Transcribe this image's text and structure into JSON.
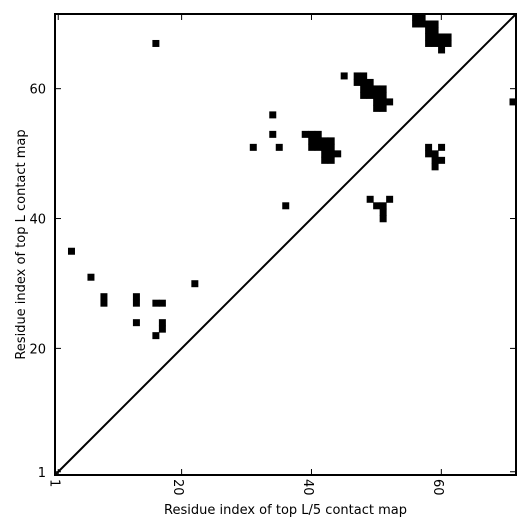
{
  "chart_data": {
    "type": "heatmap",
    "xlabel": "Residue index of top L/5 contact map",
    "ylabel": "Residue index of top L contact map",
    "xlim": [
      0.5,
      71.5
    ],
    "ylim": [
      0.5,
      71.5
    ],
    "xticks": [
      1,
      20,
      40,
      60
    ],
    "yticks": [
      1,
      20,
      40,
      60
    ],
    "grid": false,
    "diagonal": true,
    "color": "#000000",
    "upper_triangle_contacts": [
      [
        16,
        67
      ],
      [
        45,
        62
      ],
      [
        34,
        56
      ],
      [
        34,
        53
      ],
      [
        31,
        51
      ],
      [
        35,
        51
      ],
      [
        36,
        42
      ],
      [
        39,
        53
      ],
      [
        40,
        53
      ],
      [
        41,
        53
      ],
      [
        40,
        52
      ],
      [
        41,
        52
      ],
      [
        42,
        52
      ],
      [
        43,
        52
      ],
      [
        40,
        51
      ],
      [
        41,
        51
      ],
      [
        42,
        51
      ],
      [
        43,
        51
      ],
      [
        42,
        50
      ],
      [
        43,
        50
      ],
      [
        44,
        50
      ],
      [
        42,
        49
      ],
      [
        43,
        49
      ],
      [
        47,
        62
      ],
      [
        48,
        62
      ],
      [
        47,
        61
      ],
      [
        48,
        61
      ],
      [
        49,
        61
      ],
      [
        48,
        60
      ],
      [
        49,
        60
      ],
      [
        50,
        60
      ],
      [
        51,
        60
      ],
      [
        48,
        59
      ],
      [
        49,
        59
      ],
      [
        50,
        59
      ],
      [
        51,
        59
      ],
      [
        50,
        58
      ],
      [
        51,
        58
      ],
      [
        52,
        58
      ],
      [
        50,
        57
      ],
      [
        51,
        57
      ],
      [
        56,
        71
      ],
      [
        57,
        71
      ],
      [
        56,
        70
      ],
      [
        57,
        70
      ],
      [
        58,
        70
      ],
      [
        59,
        70
      ],
      [
        58,
        69
      ],
      [
        59,
        69
      ],
      [
        58,
        68
      ],
      [
        59,
        68
      ],
      [
        60,
        68
      ],
      [
        61,
        68
      ],
      [
        58,
        67
      ],
      [
        59,
        67
      ],
      [
        60,
        67
      ],
      [
        61,
        67
      ],
      [
        60,
        66
      ]
    ],
    "lower_triangle_contacts": [
      [
        3,
        35
      ],
      [
        6,
        31
      ],
      [
        8,
        28
      ],
      [
        8,
        27
      ],
      [
        13,
        28
      ],
      [
        13,
        27
      ],
      [
        13,
        24
      ],
      [
        16,
        27
      ],
      [
        17,
        27
      ],
      [
        16,
        22
      ],
      [
        17,
        24
      ],
      [
        17,
        23
      ],
      [
        22,
        30
      ],
      [
        49,
        43
      ],
      [
        52,
        43
      ],
      [
        50,
        42
      ],
      [
        51,
        42
      ],
      [
        51,
        41
      ],
      [
        51,
        40
      ],
      [
        58,
        51
      ],
      [
        60,
        51
      ],
      [
        58,
        50
      ],
      [
        59,
        50
      ],
      [
        59,
        49
      ],
      [
        60,
        49
      ],
      [
        59,
        48
      ],
      [
        71,
        58
      ]
    ]
  }
}
